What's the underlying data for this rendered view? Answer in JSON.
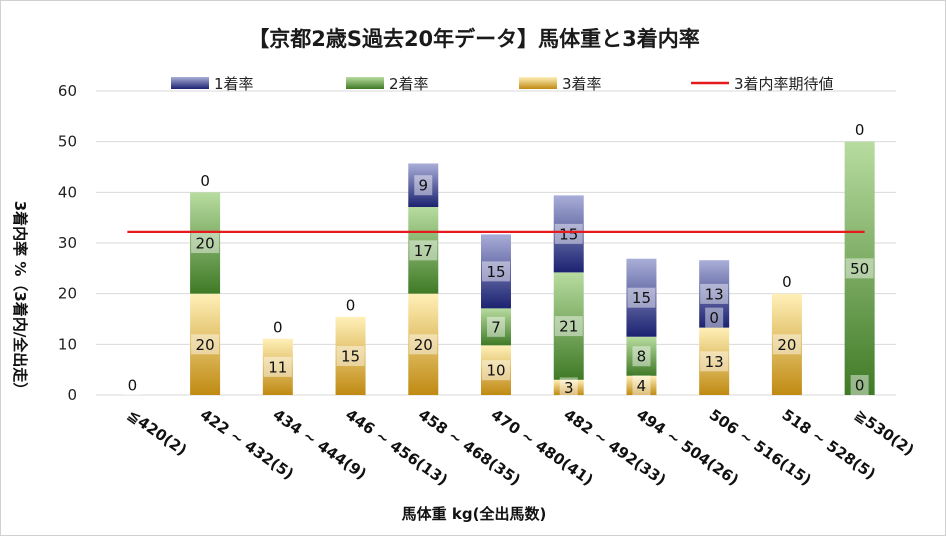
{
  "chart_data": {
    "type": "bar",
    "stacked": true,
    "title": "【京都2歳S過去20年データ】馬体重と3着内率",
    "xlabel": "馬体重 kg(全出馬数)",
    "ylabel": "3着内率 %（3着内/全出走）",
    "ylim": [
      0,
      60
    ],
    "yticks": [
      "0",
      "10",
      "20",
      "30",
      "40",
      "50",
      "60"
    ],
    "grid": "horizontal",
    "legend_position": "top",
    "categories": [
      "≦420(2)",
      "422 ~ 432(5)",
      "434 ~ 444(9)",
      "446 ~ 456(13)",
      "458 ~ 468(35)",
      "470 ~ 480(41)",
      "482 ~ 492(33)",
      "494 ~ 504(26)",
      "506 ~ 516(15)",
      "518 ~ 528(5)",
      "≧530(2)"
    ],
    "series": [
      {
        "name": "1着率",
        "color": "#3a3f8c",
        "values": [
          0,
          0,
          0,
          0,
          8.6,
          14.6,
          15.2,
          15.4,
          13.3,
          0,
          0
        ],
        "labels": [
          "",
          "",
          "",
          "",
          "9",
          "15",
          "15",
          "15",
          "13",
          "",
          ""
        ]
      },
      {
        "name": "2着率",
        "color": "#4c8a2e",
        "values": [
          0,
          20,
          0,
          0,
          17.1,
          7.3,
          21.2,
          7.7,
          0,
          0,
          50
        ],
        "labels": [
          "",
          "20",
          "",
          "",
          "17",
          "7",
          "21",
          "8",
          "0",
          "",
          "50"
        ]
      },
      {
        "name": "3着率",
        "color": "#d6a530",
        "values": [
          0,
          20,
          11.1,
          15.4,
          20,
          9.8,
          3.0,
          3.8,
          13.3,
          20,
          0
        ],
        "labels": [
          "0",
          "20",
          "11",
          "15",
          "20",
          "10",
          "3",
          "4",
          "13",
          "20",
          "0"
        ]
      }
    ],
    "top_labels": [
      "",
      "0",
      "0",
      "0",
      "",
      "",
      "",
      "",
      "",
      "0",
      "0"
    ],
    "expected_line": {
      "name": "3着内率期待値",
      "value": 32.2,
      "color": "#e41a1c"
    }
  }
}
